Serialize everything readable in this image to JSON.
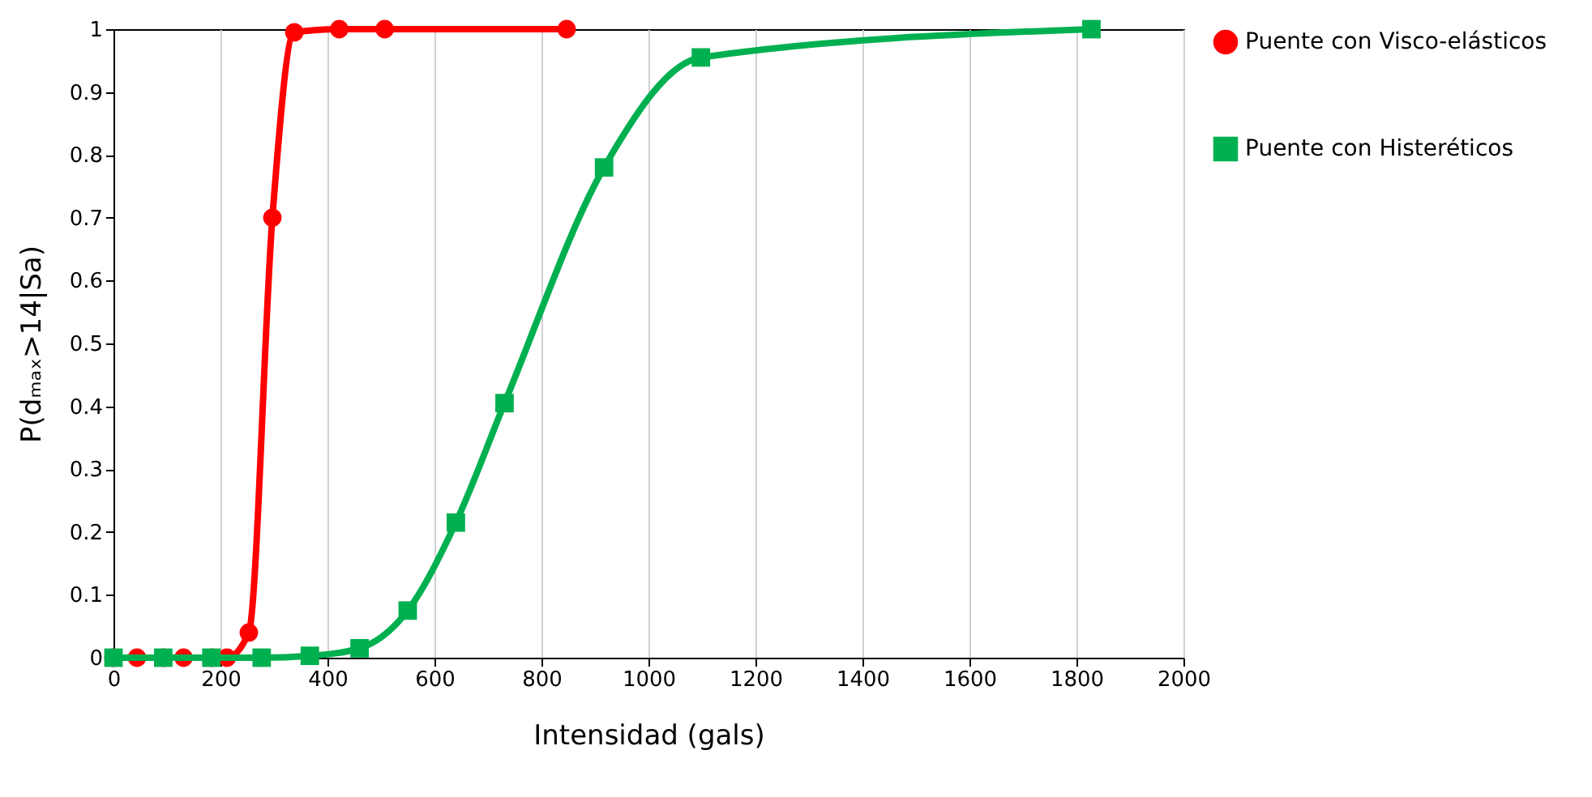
{
  "chart_data": {
    "type": "line",
    "xlabel": "Intensidad (gals)",
    "ylabel": "P(dₘₐₓ>14|Sa)",
    "xlim": [
      0,
      2000
    ],
    "xticks": [
      0,
      200,
      400,
      600,
      800,
      1000,
      1200,
      1400,
      1600,
      1800,
      2000
    ],
    "ylim": [
      0,
      1
    ],
    "yticks": [
      0,
      0.1,
      0.2,
      0.3,
      0.4,
      0.5,
      0.6,
      0.7,
      0.8,
      0.9,
      1
    ],
    "grid": "x",
    "legend": "right",
    "series": [
      {
        "name": "Puente con Visco-elásticos",
        "color": "#ff0000",
        "marker": "circle",
        "x": [
          0,
          44,
          93,
          131,
          183,
          212,
          253,
          297,
          338,
          422,
          507,
          847
        ],
        "values": [
          0,
          0,
          0,
          0,
          0,
          0,
          0.04,
          0.7,
          0.995,
          1,
          1,
          1
        ]
      },
      {
        "name": "Puente con Histeréticos",
        "color": "#00b050",
        "marker": "square",
        "x": [
          0,
          93,
          183,
          277,
          367,
          460,
          550,
          640,
          731,
          917,
          1098,
          1828
        ],
        "values": [
          0,
          0,
          0,
          0,
          0.003,
          0.015,
          0.075,
          0.215,
          0.405,
          0.78,
          0.955,
          1
        ]
      }
    ]
  }
}
